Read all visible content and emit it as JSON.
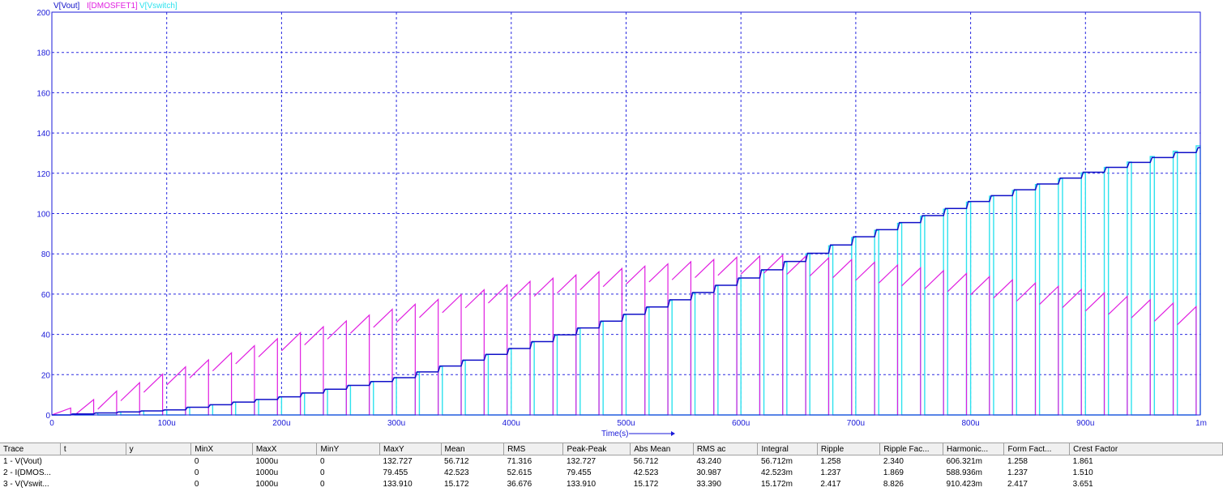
{
  "chart_data": {
    "type": "line",
    "xlabel": "Time(s)",
    "xlim": [
      0,
      1000
    ],
    "ylim": [
      0,
      200
    ],
    "x_ticks": [
      "0",
      "100u",
      "200u",
      "300u",
      "400u",
      "500u",
      "600u",
      "700u",
      "800u",
      "900u",
      "1m"
    ],
    "y_ticks": [
      "0",
      "20",
      "40",
      "60",
      "80",
      "100",
      "120",
      "140",
      "160",
      "180",
      "200"
    ],
    "grid": true,
    "legend_position": "top-left",
    "x_unit": "us",
    "switch_period": 20,
    "series": [
      {
        "name": "V[Vout]",
        "color": "#1010c8",
        "style": "staircase",
        "envelope_x": [
          0,
          100,
          200,
          300,
          400,
          500,
          600,
          700,
          800,
          900,
          1000
        ],
        "envelope_y": [
          0,
          2.5,
          9,
          18.5,
          33,
          50,
          68,
          88.5,
          106,
          120.5,
          132.7
        ]
      },
      {
        "name": "I[DMOSFET1]",
        "color": "#e01ee0",
        "style": "sawtooth",
        "envelope_x": [
          0,
          100,
          200,
          300,
          400,
          500,
          600,
          640,
          700,
          800,
          900,
          1000
        ],
        "envelope_y": [
          0,
          21,
          38.5,
          53,
          65,
          73,
          78.5,
          79.5,
          77,
          70,
          62,
          53.5
        ]
      },
      {
        "name": "V[Vswitch]",
        "color": "#2ee2ee",
        "style": "pulse",
        "envelope_x": [
          0,
          100,
          200,
          300,
          400,
          500,
          600,
          700,
          800,
          900,
          1000
        ],
        "envelope_y": [
          0,
          2.5,
          9,
          18.5,
          33,
          50,
          68,
          88.5,
          106,
          120.5,
          133.9
        ]
      }
    ]
  },
  "stats": {
    "headers": [
      "Trace",
      "t",
      "y",
      "MinX",
      "MaxX",
      "MinY",
      "MaxY",
      "Mean",
      "RMS",
      "Peak-Peak",
      "Abs Mean",
      "RMS ac",
      "Integral",
      "Ripple",
      "Ripple Fac...",
      "Harmonic...",
      "Form Fact...",
      "Crest Factor"
    ],
    "rows": [
      [
        "1 - V(Vout)",
        "",
        "",
        "0",
        "1000u",
        "0",
        "132.727",
        "56.712",
        "71.316",
        "132.727",
        "56.712",
        "43.240",
        "56.712m",
        "1.258",
        "2.340",
        "606.321m",
        "1.258",
        "1.861"
      ],
      [
        "2 - I(DMOS...",
        "",
        "",
        "0",
        "1000u",
        "0",
        "79.455",
        "42.523",
        "52.615",
        "79.455",
        "42.523",
        "30.987",
        "42.523m",
        "1.237",
        "1.869",
        "588.936m",
        "1.237",
        "1.510"
      ],
      [
        "3 - V(Vswit...",
        "",
        "",
        "0",
        "1000u",
        "0",
        "133.910",
        "15.172",
        "36.676",
        "133.910",
        "15.172",
        "33.390",
        "15.172m",
        "2.417",
        "8.826",
        "910.423m",
        "2.417",
        "3.651"
      ]
    ]
  }
}
